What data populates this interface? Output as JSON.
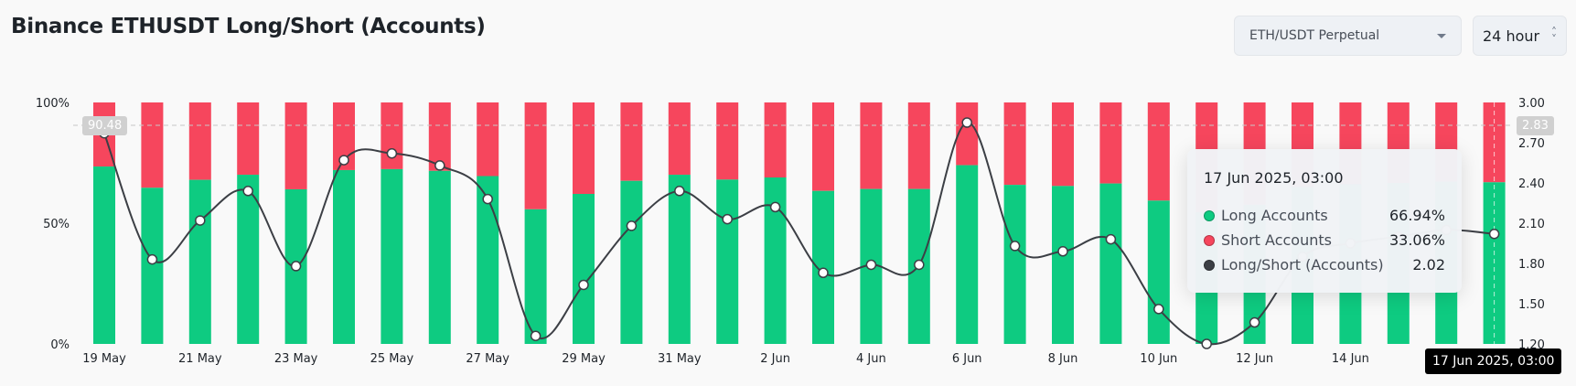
{
  "header": {
    "title": "Binance ETHUSDT Long/Short (Accounts)",
    "pair_select": "ETH/USDT Perpetual",
    "period_select": "24 hour"
  },
  "colors": {
    "long": "#0ecb81",
    "short": "#f6465d",
    "ratio_line": "#3c3f45"
  },
  "chart_data": {
    "type": "bar",
    "stacked": true,
    "categories": [
      "19 May",
      "20 May",
      "21 May",
      "22 May",
      "23 May",
      "24 May",
      "25 May",
      "26 May",
      "27 May",
      "28 May",
      "29 May",
      "30 May",
      "31 May",
      "1 Jun",
      "2 Jun",
      "3 Jun",
      "4 Jun",
      "5 Jun",
      "6 Jun",
      "7 Jun",
      "8 Jun",
      "9 Jun",
      "10 Jun",
      "11 Jun",
      "12 Jun",
      "13 Jun",
      "14 Jun",
      "15 Jun",
      "16 Jun",
      "17 Jun"
    ],
    "x_tick_labels": [
      "19 May",
      "21 May",
      "23 May",
      "25 May",
      "27 May",
      "29 May",
      "31 May",
      "2 Jun",
      "4 Jun",
      "6 Jun",
      "8 Jun",
      "10 Jun",
      "12 Jun",
      "14 Jun"
    ],
    "series": [
      {
        "name": "Long Accounts",
        "unit": "%",
        "values": [
          73.47,
          64.66,
          67.95,
          70.06,
          64.03,
          71.99,
          72.38,
          71.67,
          69.51,
          55.75,
          62.12,
          67.53,
          70.06,
          68.05,
          68.94,
          63.37,
          64.16,
          64.16,
          74.03,
          65.87,
          65.4,
          66.44,
          59.35,
          54.55,
          57.63,
          64.91,
          66.1,
          66.67,
          67.21,
          66.94
        ]
      },
      {
        "name": "Short Accounts",
        "unit": "%",
        "values": [
          26.53,
          35.34,
          32.05,
          29.94,
          35.97,
          28.01,
          27.62,
          28.33,
          30.49,
          44.25,
          37.88,
          32.47,
          29.94,
          31.95,
          31.06,
          36.63,
          35.84,
          35.84,
          25.97,
          34.13,
          34.6,
          33.56,
          40.65,
          45.45,
          42.37,
          35.09,
          33.9,
          33.33,
          32.79,
          33.06
        ]
      },
      {
        "name": "Long/Short (Accounts)",
        "type": "line",
        "axis": "right",
        "values": [
          2.77,
          1.83,
          2.12,
          2.34,
          1.78,
          2.57,
          2.62,
          2.53,
          2.28,
          1.26,
          1.64,
          2.08,
          2.34,
          2.13,
          2.22,
          1.73,
          1.79,
          1.79,
          2.85,
          1.93,
          1.89,
          1.98,
          1.46,
          1.2,
          1.36,
          1.85,
          1.95,
          2.0,
          2.05,
          2.02
        ]
      }
    ],
    "y_left": {
      "ticks": [
        "0%",
        "50%",
        "100%"
      ],
      "range": [
        0,
        100
      ]
    },
    "y_right": {
      "ticks": [
        "1.20",
        "1.50",
        "1.80",
        "2.10",
        "2.40",
        "2.70",
        "3.00"
      ],
      "range": [
        1.2,
        3.0
      ]
    },
    "crosshair": {
      "left_value": "90.48",
      "right_value": "2.83",
      "x_label": "17 Jun 2025, 03:00"
    },
    "tooltip": {
      "title": "17 Jun 2025, 03:00",
      "rows": [
        {
          "label": "Long Accounts",
          "value": "66.94%"
        },
        {
          "label": "Short Accounts",
          "value": "33.06%"
        },
        {
          "label": "Long/Short (Accounts)",
          "value": "2.02"
        }
      ]
    }
  }
}
